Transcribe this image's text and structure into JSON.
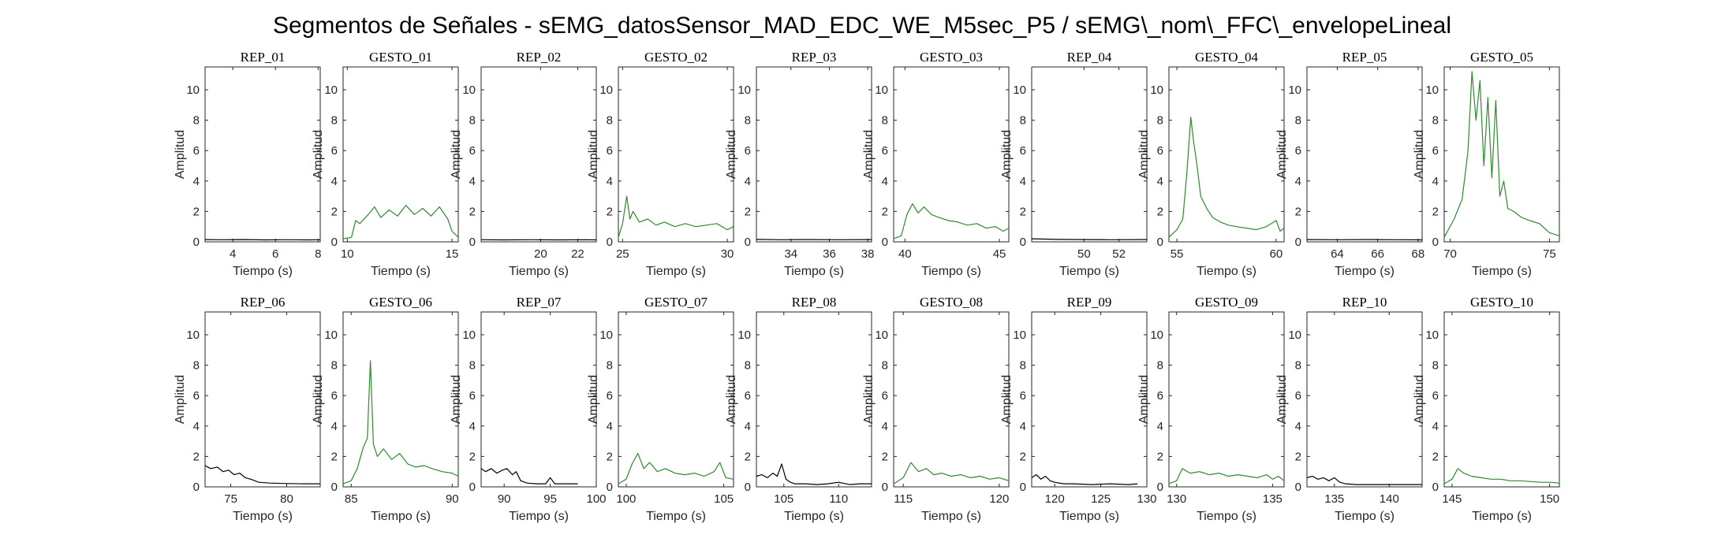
{
  "figure": {
    "title": "Segmentos de Señales - sEMG_datosSensor_MAD_EDC_WE_M5sec_P5 / sEMG\\_nom\\_FFC\\_envelopeLineal"
  },
  "colors": {
    "rep": "#000000",
    "gesto": "#2e8b2e",
    "axis": "#262626"
  },
  "chart_data": [
    {
      "type": "line",
      "title": "REP_01",
      "xlabel": "Tiempo (s)",
      "ylabel": "Amplitud",
      "xlim": [
        2.7,
        8.1
      ],
      "ylim": [
        0,
        11.5
      ],
      "xticks": [
        4,
        6,
        8
      ],
      "yticks": [
        0,
        2,
        4,
        6,
        8,
        10
      ],
      "color": "rep",
      "x": [
        2.7,
        3.5,
        4.5,
        5.5,
        6.5,
        7.5,
        8.1
      ],
      "y": [
        0.15,
        0.14,
        0.15,
        0.13,
        0.14,
        0.13,
        0.14
      ]
    },
    {
      "type": "line",
      "title": "GESTO_01",
      "xlabel": "Tiempo (s)",
      "ylabel": "Amplitud",
      "xlim": [
        9.8,
        15.3
      ],
      "ylim": [
        0,
        11.5
      ],
      "xticks": [
        10,
        15
      ],
      "yticks": [
        0,
        2,
        4,
        6,
        8,
        10
      ],
      "color": "gesto",
      "x": [
        9.8,
        10.2,
        10.4,
        10.6,
        11.0,
        11.3,
        11.6,
        12.0,
        12.4,
        12.8,
        13.2,
        13.6,
        14.0,
        14.4,
        14.8,
        15.0,
        15.3
      ],
      "y": [
        0.2,
        0.3,
        1.4,
        1.2,
        1.8,
        2.3,
        1.6,
        2.1,
        1.7,
        2.4,
        1.8,
        2.2,
        1.7,
        2.3,
        1.5,
        0.7,
        0.3
      ]
    },
    {
      "type": "line",
      "title": "REP_02",
      "xlabel": "Tiempo (s)",
      "ylabel": "Amplitud",
      "xlim": [
        16.8,
        23.0
      ],
      "ylim": [
        0,
        11.5
      ],
      "xticks": [
        20,
        22
      ],
      "yticks": [
        0,
        2,
        4,
        6,
        8,
        10
      ],
      "color": "rep",
      "x": [
        16.8,
        18.0,
        19.5,
        21.0,
        22.5,
        23.0
      ],
      "y": [
        0.14,
        0.13,
        0.14,
        0.13,
        0.14,
        0.13
      ]
    },
    {
      "type": "line",
      "title": "GESTO_02",
      "xlabel": "Tiempo (s)",
      "ylabel": "Amplitud",
      "xlim": [
        24.8,
        30.3
      ],
      "ylim": [
        0,
        11.5
      ],
      "xticks": [
        25,
        30
      ],
      "yticks": [
        0,
        2,
        4,
        6,
        8,
        10
      ],
      "color": "gesto",
      "x": [
        24.8,
        25.0,
        25.2,
        25.35,
        25.5,
        25.8,
        26.2,
        26.6,
        27.0,
        27.5,
        28.0,
        28.5,
        29.0,
        29.5,
        30.0,
        30.3
      ],
      "y": [
        0.3,
        1.2,
        3.0,
        1.5,
        2.0,
        1.3,
        1.5,
        1.1,
        1.3,
        1.0,
        1.2,
        1.0,
        1.1,
        1.2,
        0.8,
        1.0
      ]
    },
    {
      "type": "line",
      "title": "REP_03",
      "xlabel": "Tiempo (s)",
      "ylabel": "Amplitud",
      "xlim": [
        32.2,
        38.2
      ],
      "ylim": [
        0,
        11.5
      ],
      "xticks": [
        34,
        36,
        38
      ],
      "yticks": [
        0,
        2,
        4,
        6,
        8,
        10
      ],
      "color": "rep",
      "x": [
        32.2,
        33.5,
        35.0,
        36.5,
        38.2
      ],
      "y": [
        0.16,
        0.14,
        0.15,
        0.14,
        0.15
      ]
    },
    {
      "type": "line",
      "title": "GESTO_03",
      "xlabel": "Tiempo (s)",
      "ylabel": "Amplitud",
      "xlim": [
        39.4,
        45.5
      ],
      "ylim": [
        0,
        11.5
      ],
      "xticks": [
        40,
        45
      ],
      "yticks": [
        0,
        2,
        4,
        6,
        8,
        10
      ],
      "color": "gesto",
      "x": [
        39.4,
        39.8,
        40.1,
        40.4,
        40.7,
        41.0,
        41.4,
        41.8,
        42.3,
        42.8,
        43.3,
        43.8,
        44.3,
        44.8,
        45.2,
        45.5
      ],
      "y": [
        0.2,
        0.4,
        1.8,
        2.5,
        1.9,
        2.3,
        1.8,
        1.6,
        1.4,
        1.3,
        1.1,
        1.2,
        0.9,
        1.0,
        0.7,
        0.9
      ]
    },
    {
      "type": "line",
      "title": "REP_04",
      "xlabel": "Tiempo (s)",
      "ylabel": "Amplitud",
      "xlim": [
        47.0,
        53.6
      ],
      "ylim": [
        0,
        11.5
      ],
      "xticks": [
        50,
        52
      ],
      "yticks": [
        0,
        2,
        4,
        6,
        8,
        10
      ],
      "color": "rep",
      "x": [
        47.0,
        48.5,
        50.0,
        51.5,
        53.6
      ],
      "y": [
        0.2,
        0.16,
        0.15,
        0.14,
        0.15
      ]
    },
    {
      "type": "line",
      "title": "GESTO_04",
      "xlabel": "Tiempo (s)",
      "ylabel": "Amplitud",
      "xlim": [
        54.6,
        60.4
      ],
      "ylim": [
        0,
        11.5
      ],
      "xticks": [
        55,
        60
      ],
      "yticks": [
        0,
        2,
        4,
        6,
        8,
        10
      ],
      "color": "gesto",
      "x": [
        54.6,
        55.0,
        55.3,
        55.5,
        55.7,
        55.85,
        56.0,
        56.2,
        56.5,
        56.8,
        57.2,
        57.6,
        58.0,
        58.5,
        59.0,
        59.5,
        60.0,
        60.2,
        60.4
      ],
      "y": [
        0.3,
        0.8,
        1.5,
        4.5,
        8.2,
        6.5,
        5.2,
        3.0,
        2.2,
        1.6,
        1.3,
        1.1,
        1.0,
        0.9,
        0.8,
        1.0,
        1.4,
        0.7,
        0.9
      ]
    },
    {
      "type": "line",
      "title": "REP_05",
      "xlabel": "Tiempo (s)",
      "ylabel": "Amplitud",
      "xlim": [
        62.5,
        68.2
      ],
      "ylim": [
        0,
        11.5
      ],
      "xticks": [
        64,
        66,
        68
      ],
      "yticks": [
        0,
        2,
        4,
        6,
        8,
        10
      ],
      "color": "rep",
      "x": [
        62.5,
        64.0,
        65.5,
        67.0,
        68.2
      ],
      "y": [
        0.15,
        0.14,
        0.15,
        0.14,
        0.13
      ]
    },
    {
      "type": "line",
      "title": "GESTO_05",
      "xlabel": "Tiempo (s)",
      "ylabel": "Amplitud",
      "xlim": [
        69.7,
        75.5
      ],
      "ylim": [
        0,
        11.5
      ],
      "xticks": [
        70,
        75
      ],
      "yticks": [
        0,
        2,
        4,
        6,
        8,
        10
      ],
      "color": "gesto",
      "x": [
        69.7,
        70.2,
        70.6,
        70.9,
        71.1,
        71.3,
        71.5,
        71.7,
        71.9,
        72.1,
        72.3,
        72.5,
        72.7,
        72.9,
        73.2,
        73.6,
        74.0,
        74.5,
        75.0,
        75.5
      ],
      "y": [
        0.3,
        1.5,
        2.8,
        6.0,
        11.2,
        8.0,
        10.6,
        5.0,
        9.5,
        4.2,
        9.3,
        3.0,
        4.0,
        2.2,
        2.0,
        1.6,
        1.4,
        1.2,
        0.6,
        0.4
      ]
    },
    {
      "type": "line",
      "title": "REP_06",
      "xlabel": "Tiempo (s)",
      "ylabel": "Amplitud",
      "xlim": [
        72.7,
        83.0
      ],
      "ylim": [
        0,
        11.5
      ],
      "xticks": [
        75,
        80
      ],
      "yticks": [
        0,
        2,
        4,
        6,
        8,
        10
      ],
      "color": "rep",
      "x": [
        72.7,
        73.2,
        73.8,
        74.3,
        74.8,
        75.3,
        75.8,
        76.3,
        76.8,
        77.5,
        78.5,
        80.0,
        81.5,
        83.0
      ],
      "y": [
        1.4,
        1.2,
        1.3,
        1.0,
        1.1,
        0.8,
        0.9,
        0.6,
        0.5,
        0.3,
        0.25,
        0.22,
        0.2,
        0.2
      ]
    },
    {
      "type": "line",
      "title": "GESTO_06",
      "xlabel": "Tiempo (s)",
      "ylabel": "Amplitud",
      "xlim": [
        84.6,
        90.3
      ],
      "ylim": [
        0,
        11.5
      ],
      "xticks": [
        85,
        90
      ],
      "yticks": [
        0,
        2,
        4,
        6,
        8,
        10
      ],
      "color": "gesto",
      "x": [
        84.6,
        85.0,
        85.3,
        85.6,
        85.8,
        85.95,
        86.1,
        86.3,
        86.6,
        87.0,
        87.4,
        87.8,
        88.2,
        88.6,
        89.0,
        89.5,
        90.0,
        90.3
      ],
      "y": [
        0.2,
        0.4,
        1.2,
        2.6,
        3.2,
        8.3,
        2.8,
        2.0,
        2.5,
        1.8,
        2.2,
        1.5,
        1.3,
        1.4,
        1.2,
        1.0,
        0.9,
        0.7
      ]
    },
    {
      "type": "line",
      "title": "REP_07",
      "xlabel": "Tiempo (s)",
      "ylabel": "Amplitud",
      "xlim": [
        87.5,
        100.0
      ],
      "ylim": [
        0,
        11.5
      ],
      "xticks": [
        90,
        95,
        100
      ],
      "yticks": [
        0,
        2,
        4,
        6,
        8,
        10
      ],
      "color": "rep",
      "x": [
        87.5,
        88.0,
        88.6,
        89.2,
        89.8,
        90.3,
        90.9,
        91.3,
        91.8,
        92.5,
        93.5,
        94.5,
        95.0,
        95.5,
        96.5,
        98.0
      ],
      "y": [
        1.2,
        1.0,
        1.2,
        0.9,
        1.1,
        1.2,
        0.8,
        1.0,
        0.4,
        0.25,
        0.2,
        0.2,
        0.6,
        0.2,
        0.2,
        0.2
      ]
    },
    {
      "type": "line",
      "title": "GESTO_07",
      "xlabel": "Tiempo (s)",
      "ylabel": "Amplitud",
      "xlim": [
        99.6,
        105.5
      ],
      "ylim": [
        0,
        11.5
      ],
      "xticks": [
        100,
        105
      ],
      "yticks": [
        0,
        2,
        4,
        6,
        8,
        10
      ],
      "color": "gesto",
      "x": [
        99.6,
        100.0,
        100.3,
        100.6,
        100.9,
        101.2,
        101.6,
        102.0,
        102.5,
        103.0,
        103.5,
        104.0,
        104.5,
        104.8,
        105.1,
        105.5
      ],
      "y": [
        0.2,
        0.5,
        1.5,
        2.2,
        1.2,
        1.6,
        1.0,
        1.2,
        0.9,
        0.8,
        0.9,
        0.7,
        1.0,
        1.6,
        0.6,
        0.5
      ]
    },
    {
      "type": "line",
      "title": "REP_08",
      "xlabel": "Tiempo (s)",
      "ylabel": "Amplitud",
      "xlim": [
        102.5,
        113.0
      ],
      "ylim": [
        0,
        11.5
      ],
      "xticks": [
        105,
        110
      ],
      "yticks": [
        0,
        2,
        4,
        6,
        8,
        10
      ],
      "color": "rep",
      "x": [
        102.5,
        103.0,
        103.5,
        104.0,
        104.4,
        104.8,
        105.2,
        105.6,
        106.0,
        107.0,
        108.0,
        109.0,
        110.0,
        111.0,
        112.0,
        113.0
      ],
      "y": [
        0.7,
        0.8,
        0.6,
        0.9,
        0.7,
        1.5,
        0.5,
        0.3,
        0.2,
        0.2,
        0.15,
        0.2,
        0.3,
        0.15,
        0.2,
        0.2
      ]
    },
    {
      "type": "line",
      "title": "GESTO_08",
      "xlabel": "Tiempo (s)",
      "ylabel": "Amplitud",
      "xlim": [
        114.5,
        120.5
      ],
      "ylim": [
        0,
        11.5
      ],
      "xticks": [
        115,
        120
      ],
      "yticks": [
        0,
        2,
        4,
        6,
        8,
        10
      ],
      "color": "gesto",
      "x": [
        114.5,
        115.0,
        115.4,
        115.8,
        116.2,
        116.6,
        117.0,
        117.5,
        118.0,
        118.5,
        119.0,
        119.5,
        120.0,
        120.5
      ],
      "y": [
        0.2,
        0.6,
        1.6,
        1.0,
        1.2,
        0.8,
        0.9,
        0.7,
        0.8,
        0.6,
        0.7,
        0.5,
        0.6,
        0.4
      ]
    },
    {
      "type": "line",
      "title": "REP_09",
      "xlabel": "Tiempo (s)",
      "ylabel": "Amplitud",
      "xlim": [
        117.5,
        130.0
      ],
      "ylim": [
        0,
        11.5
      ],
      "xticks": [
        120,
        125,
        130
      ],
      "yticks": [
        0,
        2,
        4,
        6,
        8,
        10
      ],
      "color": "rep",
      "x": [
        117.5,
        118.0,
        118.5,
        119.0,
        119.5,
        120.0,
        121.0,
        122.0,
        124.0,
        126.0,
        128.0,
        129.0
      ],
      "y": [
        0.6,
        0.8,
        0.5,
        0.7,
        0.4,
        0.3,
        0.2,
        0.2,
        0.15,
        0.2,
        0.15,
        0.2
      ]
    },
    {
      "type": "line",
      "title": "GESTO_09",
      "xlabel": "Tiempo (s)",
      "ylabel": "Amplitud",
      "xlim": [
        129.6,
        135.6
      ],
      "ylim": [
        0,
        11.5
      ],
      "xticks": [
        130,
        135
      ],
      "yticks": [
        0,
        2,
        4,
        6,
        8,
        10
      ],
      "color": "gesto",
      "x": [
        129.6,
        130.0,
        130.3,
        130.7,
        131.2,
        131.7,
        132.2,
        132.7,
        133.2,
        133.7,
        134.2,
        134.7,
        135.0,
        135.3,
        135.6
      ],
      "y": [
        0.2,
        0.4,
        1.2,
        0.9,
        1.0,
        0.8,
        0.9,
        0.7,
        0.8,
        0.7,
        0.6,
        0.8,
        0.5,
        0.7,
        0.4
      ]
    },
    {
      "type": "line",
      "title": "REP_10",
      "xlabel": "Tiempo (s)",
      "ylabel": "Amplitud",
      "xlim": [
        132.5,
        143.0
      ],
      "ylim": [
        0,
        11.5
      ],
      "xticks": [
        135,
        140
      ],
      "yticks": [
        0,
        2,
        4,
        6,
        8,
        10
      ],
      "color": "rep",
      "x": [
        132.5,
        133.0,
        133.5,
        134.0,
        134.5,
        135.0,
        135.5,
        136.0,
        137.0,
        138.5,
        140.0,
        141.5,
        143.0
      ],
      "y": [
        0.6,
        0.7,
        0.5,
        0.6,
        0.4,
        0.6,
        0.3,
        0.2,
        0.15,
        0.15,
        0.15,
        0.15,
        0.15
      ]
    },
    {
      "type": "line",
      "title": "GESTO_10",
      "xlabel": "Tiempo (s)",
      "ylabel": "Amplitud",
      "xlim": [
        144.6,
        150.5
      ],
      "ylim": [
        0,
        11.5
      ],
      "xticks": [
        145,
        150
      ],
      "yticks": [
        0,
        2,
        4,
        6,
        8,
        10
      ],
      "color": "gesto",
      "x": [
        144.6,
        145.0,
        145.3,
        145.6,
        146.0,
        146.5,
        147.0,
        147.5,
        148.0,
        148.5,
        149.0,
        149.5,
        150.0,
        150.5
      ],
      "y": [
        0.2,
        0.5,
        1.2,
        0.9,
        0.7,
        0.6,
        0.5,
        0.5,
        0.4,
        0.4,
        0.35,
        0.3,
        0.3,
        0.25
      ]
    }
  ]
}
